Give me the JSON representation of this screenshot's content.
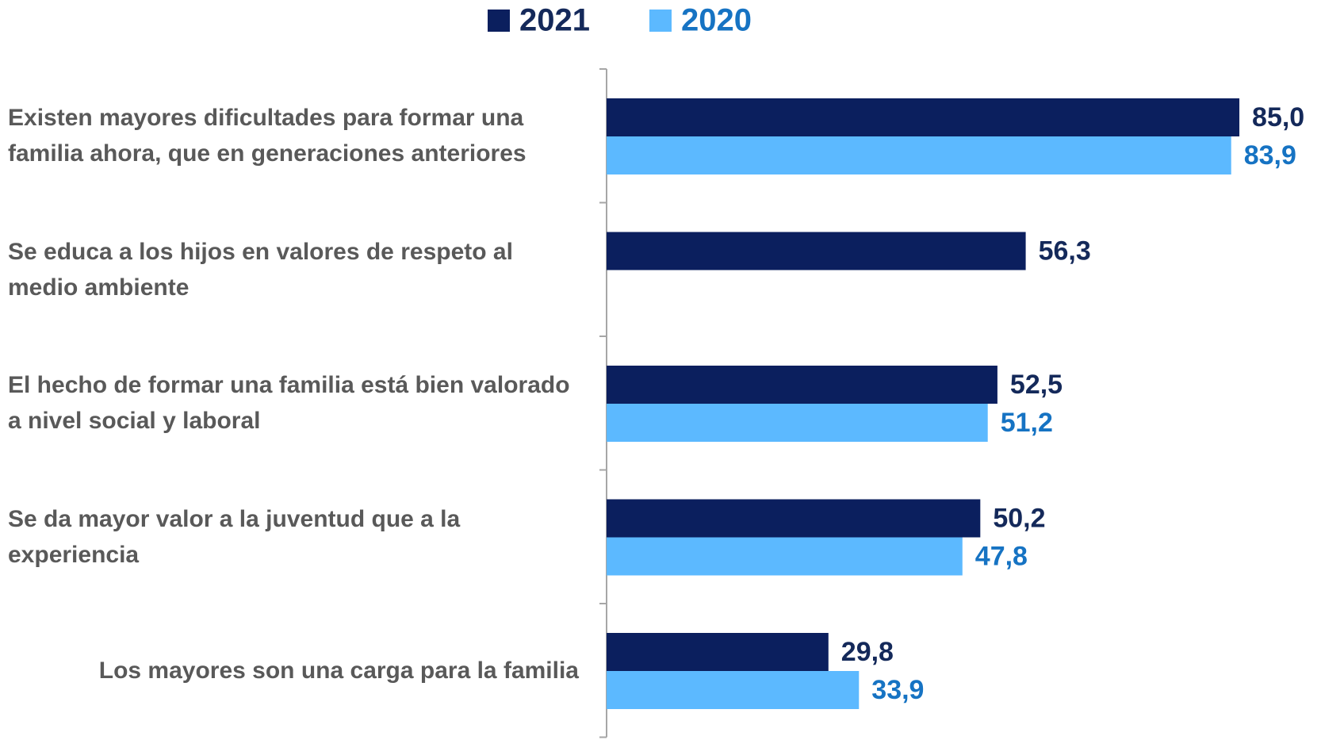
{
  "chart_data": {
    "type": "barh",
    "categories": [
      "Existen mayores dificultades para formar una familia ahora, que en generaciones anteriores",
      "Se educa a los hijos en valores de respeto al medio ambiente",
      "El hecho de formar una familia está bien valorado a nivel social y laboral",
      "Se da mayor valor a la juventud que a la experiencia",
      "Los mayores son una carga para la familia"
    ],
    "series": [
      {
        "name": "2021",
        "color": "#0b1f5e",
        "label_color": "#14295a",
        "values": [
          85.0,
          56.3,
          52.5,
          50.2,
          29.8
        ],
        "value_labels": [
          "85,0",
          "56,3",
          "52,5",
          "50,2",
          "29,8"
        ]
      },
      {
        "name": "2020",
        "color": "#5cb9ff",
        "label_color": "#1673c3",
        "values": [
          83.9,
          null,
          51.2,
          47.8,
          33.9
        ],
        "value_labels": [
          "83,9",
          null,
          "51,2",
          "47,8",
          "33,9"
        ]
      }
    ],
    "xlim": [
      0,
      90
    ],
    "legend": "top"
  }
}
